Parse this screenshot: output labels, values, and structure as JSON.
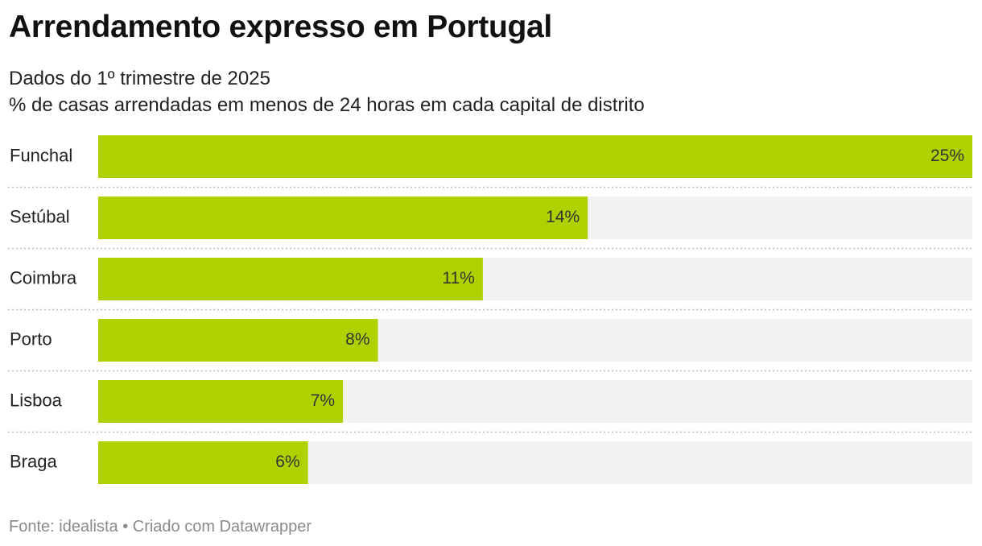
{
  "chart_data": {
    "type": "bar",
    "orientation": "horizontal",
    "title": "Arrendamento expresso em Portugal",
    "subtitle_lines": [
      "Dados do 1º trimestre de 2025",
      "% de casas arrendadas em menos de 24 horas em cada capital de distrito"
    ],
    "categories": [
      "Funchal",
      "Setúbal",
      "Coimbra",
      "Porto",
      "Lisboa",
      "Braga"
    ],
    "values": [
      25,
      14,
      11,
      8,
      7,
      6
    ],
    "value_labels": [
      "25%",
      "14%",
      "11%",
      "8%",
      "7%",
      "6%"
    ],
    "xlim": [
      0,
      25
    ],
    "bar_color": "#b0d000",
    "track_color": "#f2f2f2",
    "grid": false
  },
  "footer": {
    "source": "Fonte: idealista • Criado com Datawrapper"
  }
}
